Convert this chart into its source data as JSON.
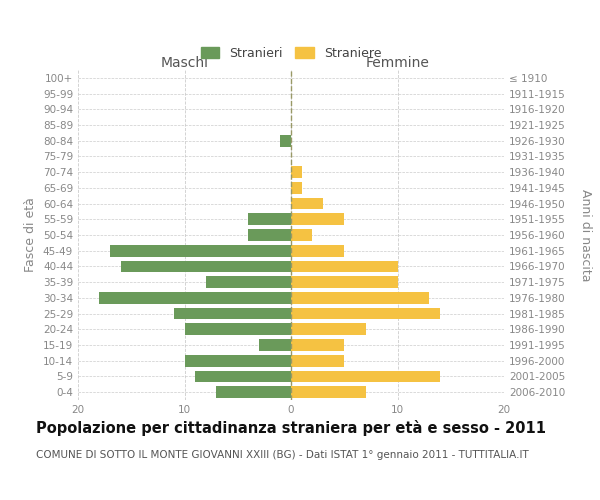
{
  "age_groups": [
    "100+",
    "95-99",
    "90-94",
    "85-89",
    "80-84",
    "75-79",
    "70-74",
    "65-69",
    "60-64",
    "55-59",
    "50-54",
    "45-49",
    "40-44",
    "35-39",
    "30-34",
    "25-29",
    "20-24",
    "15-19",
    "10-14",
    "5-9",
    "0-4"
  ],
  "birth_years": [
    "≤ 1910",
    "1911-1915",
    "1916-1920",
    "1921-1925",
    "1926-1930",
    "1931-1935",
    "1936-1940",
    "1941-1945",
    "1946-1950",
    "1951-1955",
    "1956-1960",
    "1961-1965",
    "1966-1970",
    "1971-1975",
    "1976-1980",
    "1981-1985",
    "1986-1990",
    "1991-1995",
    "1996-2000",
    "2001-2005",
    "2006-2010"
  ],
  "maschi": [
    0,
    0,
    0,
    0,
    1,
    0,
    0,
    0,
    0,
    4,
    4,
    17,
    16,
    8,
    18,
    11,
    10,
    3,
    10,
    9,
    7
  ],
  "femmine": [
    0,
    0,
    0,
    0,
    0,
    0,
    1,
    1,
    3,
    5,
    2,
    5,
    10,
    10,
    13,
    14,
    7,
    5,
    5,
    14,
    7
  ],
  "maschi_color": "#6a9a5a",
  "femmine_color": "#f5c242",
  "grid_color": "#cccccc",
  "title": "Popolazione per cittadinanza straniera per età e sesso - 2011",
  "subtitle": "COMUNE DI SOTTO IL MONTE GIOVANNI XXIII (BG) - Dati ISTAT 1° gennaio 2011 - TUTTITALIA.IT",
  "xlabel_left": "Maschi",
  "xlabel_right": "Femmine",
  "ylabel_left": "Fasce di età",
  "ylabel_right": "Anni di nascita",
  "legend_maschi": "Stranieri",
  "legend_femmine": "Straniere",
  "xlim": 20,
  "title_fontsize": 10.5,
  "subtitle_fontsize": 7.5,
  "axis_label_fontsize": 9,
  "tick_fontsize": 7.5,
  "header_fontsize": 10
}
